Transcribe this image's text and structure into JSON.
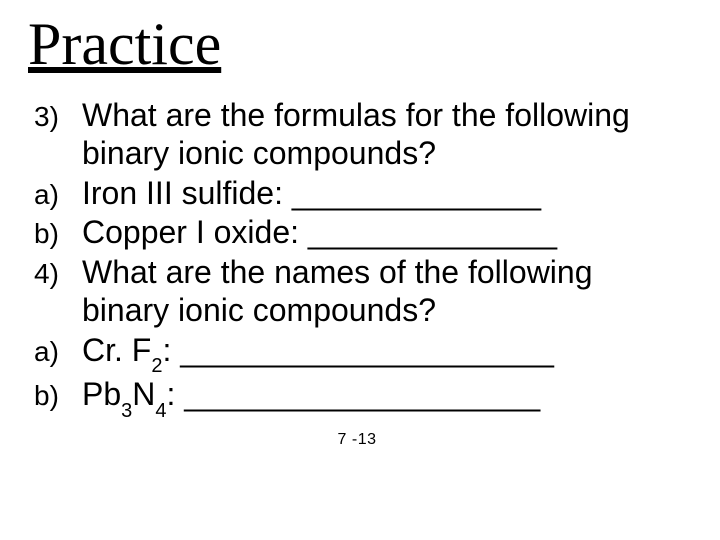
{
  "title": "Practice",
  "items": [
    {
      "num": "3)",
      "text": "What are the formulas for the following binary ionic compounds?"
    },
    {
      "num": "a)",
      "text": "Iron III sulfide: ______________"
    },
    {
      "num": "b)",
      "text": "Copper I oxide: ______________"
    },
    {
      "num": "4)",
      "text": "What are the names of the following binary ionic compounds?"
    },
    {
      "num": "a)",
      "formula": {
        "pre": "Cr. F",
        "sub1": "2",
        "mid": "",
        "sub2": "",
        "tail": ": _____________________"
      }
    },
    {
      "num": "b)",
      "formula": {
        "pre": "Pb",
        "sub1": "3",
        "mid": "N",
        "sub2": "4",
        "tail": ": ____________________"
      }
    }
  ],
  "page_number": "7 -13"
}
